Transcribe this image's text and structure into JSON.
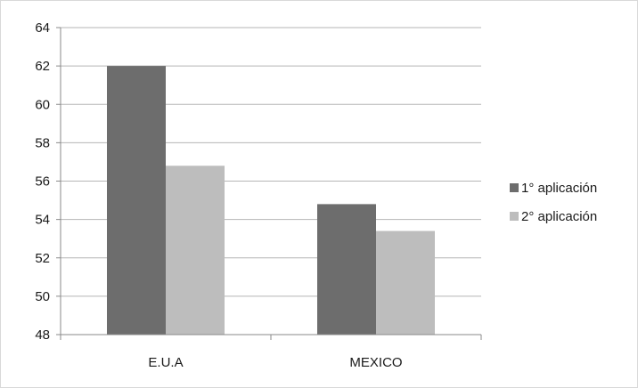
{
  "chart_data": {
    "type": "bar",
    "categories": [
      "E.U.A",
      "MEXICO"
    ],
    "series": [
      {
        "name": "1° aplicación",
        "values": [
          62,
          54.8
        ],
        "color": "#6d6d6d"
      },
      {
        "name": "2° aplicación",
        "values": [
          56.8,
          53.4
        ],
        "color": "#bdbdbd"
      }
    ],
    "ylim": [
      48,
      64
    ],
    "yticks": [
      48,
      50,
      52,
      54,
      56,
      58,
      60,
      62,
      64
    ],
    "grid": true,
    "legend_position": "right",
    "title": "",
    "xlabel": "",
    "ylabel": ""
  }
}
